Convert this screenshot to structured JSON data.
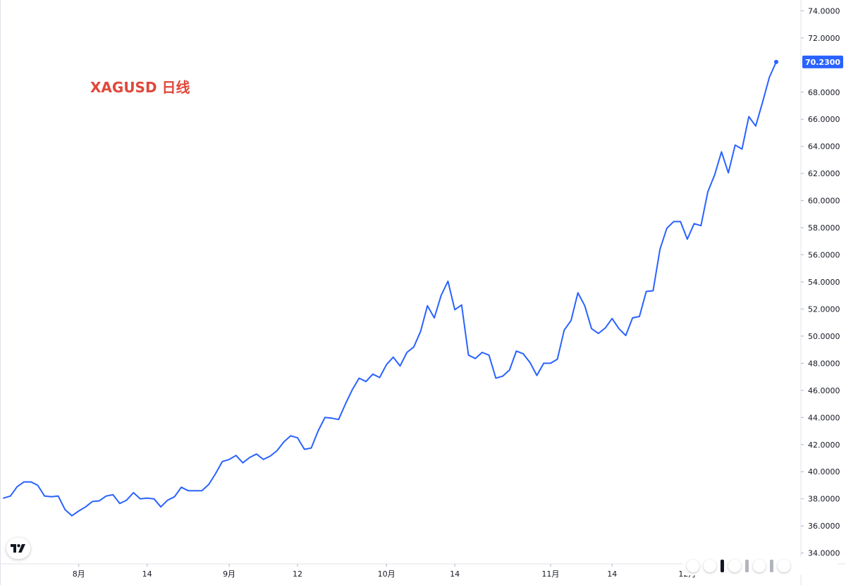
{
  "chart_data": {
    "type": "line",
    "title": "XAGUSD 日线",
    "colors": {
      "line": "#2962ff",
      "title": "#e0483b",
      "price_label_bg": "#2962ff"
    },
    "x_ticks": [
      {
        "index": 11,
        "label": "8月"
      },
      {
        "index": 21,
        "label": "14"
      },
      {
        "index": 33,
        "label": "9月"
      },
      {
        "index": 43,
        "label": "12"
      },
      {
        "index": 56,
        "label": "10月"
      },
      {
        "index": 66,
        "label": "14"
      },
      {
        "index": 80,
        "label": "11月"
      },
      {
        "index": 89,
        "label": "14"
      },
      {
        "index": 100,
        "label": "12月"
      }
    ],
    "y_ticks": [
      "74.0000",
      "72.0000",
      "68.0000",
      "66.0000",
      "64.0000",
      "62.0000",
      "60.0000",
      "58.0000",
      "56.0000",
      "54.0000",
      "52.0000",
      "50.0000",
      "48.0000",
      "46.0000",
      "44.0000",
      "42.0000",
      "40.0000",
      "38.0000",
      "36.0000",
      "34.0000"
    ],
    "y_tick_values": [
      74,
      72,
      68,
      66,
      64,
      62,
      60,
      58,
      56,
      54,
      52,
      50,
      48,
      46,
      44,
      42,
      40,
      38,
      36,
      34
    ],
    "ylim": [
      33.2,
      74.8
    ],
    "last_price_label": "70.2300",
    "values": [
      38.05,
      38.2,
      38.9,
      39.25,
      39.25,
      39.0,
      38.2,
      38.15,
      38.2,
      37.2,
      36.75,
      37.1,
      37.4,
      37.8,
      37.85,
      38.2,
      38.3,
      37.65,
      37.9,
      38.45,
      38.0,
      38.05,
      38.0,
      37.4,
      37.9,
      38.15,
      38.85,
      38.6,
      38.6,
      38.6,
      39.05,
      39.85,
      40.75,
      40.9,
      41.2,
      40.65,
      41.05,
      41.3,
      40.9,
      41.15,
      41.55,
      42.2,
      42.65,
      42.5,
      41.65,
      41.75,
      43.0,
      44.0,
      43.95,
      43.85,
      45.0,
      46.05,
      46.9,
      46.65,
      47.2,
      46.95,
      47.9,
      48.45,
      47.8,
      48.8,
      49.2,
      50.35,
      52.25,
      51.35,
      53.0,
      54.05,
      51.95,
      52.3,
      48.6,
      48.35,
      48.8,
      48.6,
      46.9,
      47.05,
      47.5,
      48.9,
      48.7,
      48.05,
      47.1,
      48.0,
      48.0,
      48.3,
      50.45,
      51.15,
      53.2,
      52.25,
      50.55,
      50.2,
      50.6,
      51.3,
      50.55,
      50.05,
      51.35,
      51.45,
      53.3,
      53.35,
      56.4,
      57.95,
      58.45,
      58.45,
      57.15,
      58.3,
      58.15,
      60.65,
      61.9,
      63.6,
      62.05,
      64.1,
      63.8,
      66.2,
      65.5,
      67.25,
      69.1,
      70.23
    ]
  },
  "icons": {
    "logo": "tradingview-logo-icon",
    "controls": "chart-navigation-controls"
  }
}
